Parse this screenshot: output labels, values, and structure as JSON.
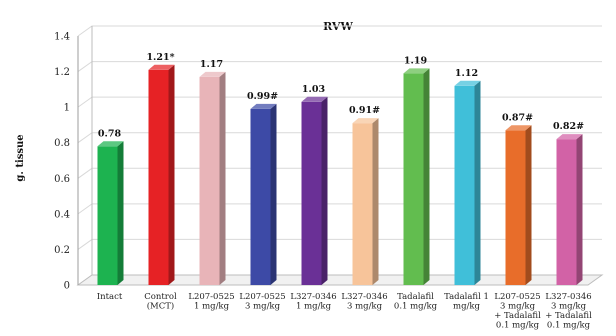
{
  "chart_data": {
    "type": "bar",
    "title": "RVW",
    "ylabel": "g. tissue",
    "xlabel": "",
    "ylim": [
      0,
      1.4
    ],
    "yticks": [
      "0",
      "0.2",
      "0.4",
      "0.6",
      "0.8",
      "1",
      "1.2",
      "1.4"
    ],
    "grid": true,
    "style": "3d",
    "categories": [
      [
        "Intact"
      ],
      [
        "Control",
        "(MCT)"
      ],
      [
        "L207-0525",
        "1 mg/kg"
      ],
      [
        "L207-0525",
        "3 mg/kg"
      ],
      [
        "L327-0346",
        "1 mg/kg"
      ],
      [
        "L327-0346",
        "3 mg/kg"
      ],
      [
        "Tadalafil",
        "0.1 mg/kg"
      ],
      [
        "Tadalafil 1",
        "mg/kg"
      ],
      [
        "L207-0525",
        "3 mg/kg",
        "+ Tadalafil",
        "0.1 mg/kg"
      ],
      [
        "L327-0346",
        "3 mg/kg",
        "+ Tadalafil",
        "0.1 mg/kg"
      ]
    ],
    "values": [
      0.78,
      1.21,
      1.17,
      0.99,
      1.03,
      0.91,
      1.19,
      1.12,
      0.87,
      0.82
    ],
    "value_labels": [
      "0.78",
      "1.21*",
      "1.17",
      "0.99#",
      "1.03",
      "0.91#",
      "1.19",
      "1.12",
      "0.87#",
      "0.82#"
    ],
    "colors": [
      "#1db350",
      "#e62225",
      "#e8b4b8",
      "#3d4aa6",
      "#6a3096",
      "#f7c49a",
      "#62bd4f",
      "#40bfd9",
      "#e86d2a",
      "#d262a6"
    ]
  }
}
